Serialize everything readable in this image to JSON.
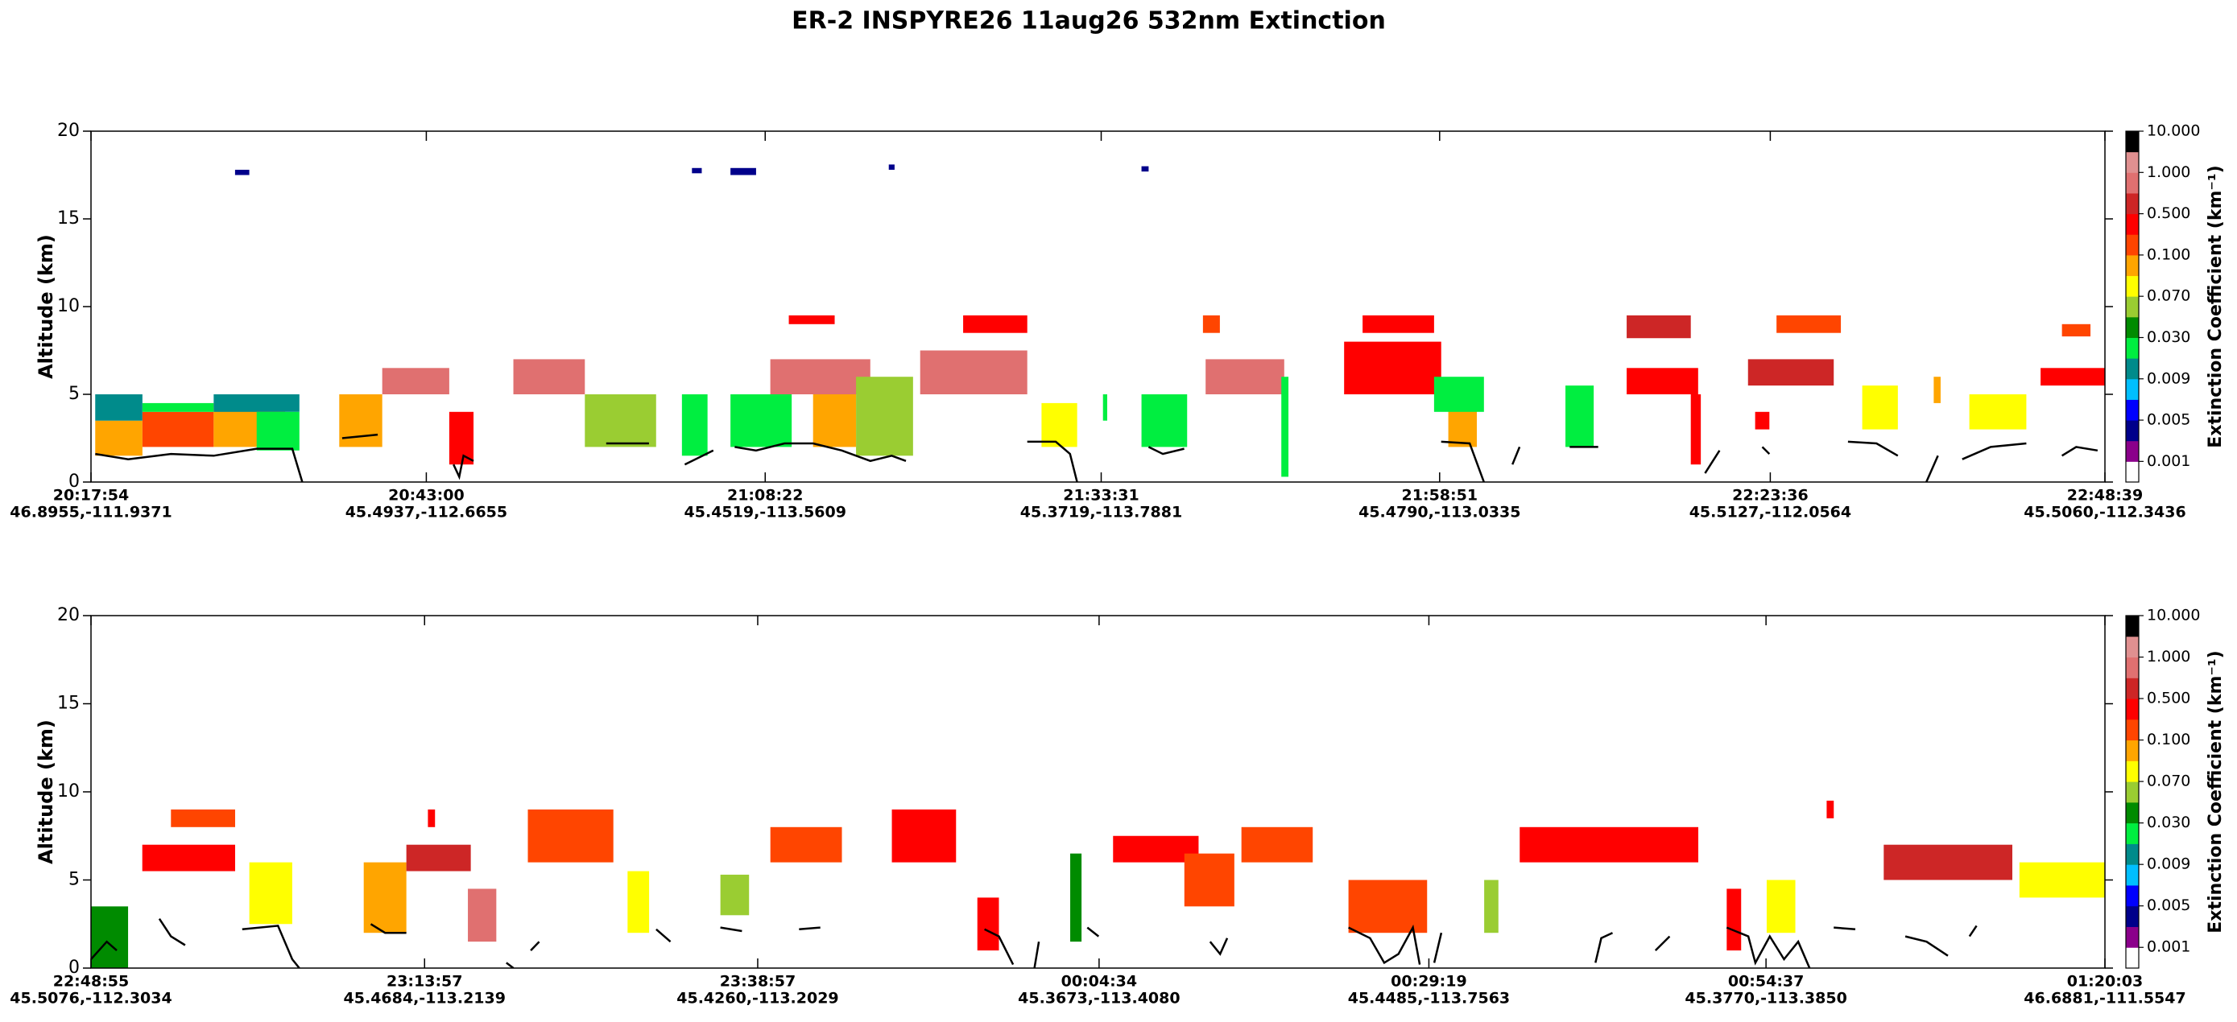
{
  "title": "ER-2  INSPYRE26  11aug26  532nm Extinction",
  "colorbar": {
    "label": "Extinction Coefficient (km⁻¹)",
    "ticks": [
      0.001,
      0.005,
      0.009,
      {
        "value": 0.03,
        "label": "0.030"
      },
      {
        "value": 0.07,
        "label": "0.070"
      },
      {
        "value": 0.1,
        "label": "0.100"
      },
      {
        "value": 0.5,
        "label": "0.500"
      },
      {
        "value": 1,
        "label": "1.000"
      },
      {
        "value": 10,
        "label": "10.000"
      }
    ],
    "colors": [
      "#ffffff",
      "#8b008b",
      "#00008b",
      "#0000ff",
      "#00bfff",
      "#008b8b",
      "#00ee40",
      "#008b00",
      "#9acd32",
      "#ffff00",
      "#ffa500",
      "#ff4500",
      "#ff0000",
      "#cd2626",
      "#e07070",
      "#e09090",
      "#000000"
    ]
  },
  "chart_data": [
    {
      "type": "curtain",
      "ylabel": "Altitude (km)",
      "ylim": [
        0,
        20
      ],
      "yticks": [
        0,
        5,
        10,
        15,
        20
      ],
      "xlim": [
        73074,
        82119
      ],
      "xticks": [
        {
          "value": 73074,
          "label": [
            "20:17:54",
            "46.8955,-111.9371"
          ]
        },
        {
          "value": 74580,
          "label": [
            "20:43:00",
            "45.4937,-112.6655"
          ]
        },
        {
          "value": 76102,
          "label": [
            "21:08:22",
            "45.4519,-113.5609"
          ]
        },
        {
          "value": 77611,
          "label": [
            "21:33:31",
            "45.3719,-113.7881"
          ]
        },
        {
          "value": 79131,
          "label": [
            "21:58:51",
            "45.4790,-113.0335"
          ]
        },
        {
          "value": 80616,
          "label": [
            "22:23:36",
            "45.5127,-112.0564"
          ]
        },
        {
          "value": 82119,
          "label": [
            "22:48:39",
            "45.5060,-112.3436"
          ]
        }
      ],
      "cells": [
        [
          73093,
          73305,
          1.5,
          3.5,
          0.09
        ],
        [
          73093,
          73305,
          3.5,
          5,
          0.01
        ],
        [
          73305,
          73625,
          2,
          4,
          0.2
        ],
        [
          73305,
          73625,
          4,
          4.5,
          0.02
        ],
        [
          73625,
          73946,
          2,
          4.5,
          0.09
        ],
        [
          73625,
          74010,
          4,
          5,
          0.01
        ],
        [
          73818,
          74010,
          1.8,
          4,
          0.02
        ],
        [
          73721,
          73785,
          17.5,
          17.8,
          0.004
        ],
        [
          74189,
          74382,
          2,
          5,
          0.09
        ],
        [
          74382,
          74683,
          5,
          6.5,
          0.9
        ],
        [
          74683,
          74792,
          1,
          4,
          0.4
        ],
        [
          74971,
          75292,
          5,
          7,
          0.9
        ],
        [
          75292,
          75612,
          2,
          5,
          0.06
        ],
        [
          75728,
          75843,
          1.5,
          5,
          0.02
        ],
        [
          75773,
          75817,
          17.6,
          17.9,
          0.004
        ],
        [
          75946,
          76061,
          17.5,
          17.9,
          0.004
        ],
        [
          75946,
          76221,
          2,
          5,
          0.02
        ],
        [
          76125,
          76574,
          5,
          7,
          0.9
        ],
        [
          76208,
          76414,
          9,
          9.5,
          0.4
        ],
        [
          76317,
          76510,
          2,
          5,
          0.09
        ],
        [
          76510,
          76766,
          1.5,
          6,
          0.06
        ],
        [
          76657,
          76683,
          17.8,
          18.1,
          0.004
        ],
        [
          76798,
          77279,
          5,
          7.5,
          0.9
        ],
        [
          76991,
          77279,
          8.5,
          9.5,
          0.4
        ],
        [
          77343,
          77503,
          2,
          4.5,
          0.08
        ],
        [
          77619,
          77638,
          3.5,
          5,
          0.02
        ],
        [
          77792,
          77824,
          17.7,
          18,
          0.004
        ],
        [
          77792,
          77997,
          2,
          5,
          0.02
        ],
        [
          78080,
          78433,
          5,
          7,
          0.9
        ],
        [
          78068,
          78144,
          8.5,
          9.5,
          0.2
        ],
        [
          78420,
          78452,
          0.3,
          6,
          0.02
        ],
        [
          78702,
          79138,
          5,
          8,
          0.4
        ],
        [
          78785,
          79106,
          8.5,
          9.5,
          0.4
        ],
        [
          79170,
          79298,
          2,
          5,
          0.09
        ],
        [
          79106,
          79330,
          4,
          6,
          0.02
        ],
        [
          79696,
          79823,
          2,
          5.5,
          0.02
        ],
        [
          79971,
          80292,
          5,
          6.5,
          0.4
        ],
        [
          79971,
          80259,
          8.2,
          9.5,
          0.7
        ],
        [
          80259,
          80304,
          1,
          5,
          0.4
        ],
        [
          80516,
          80901,
          5.5,
          7,
          0.7
        ],
        [
          80644,
          80933,
          8.5,
          9.5,
          0.2
        ],
        [
          80548,
          80612,
          3,
          4,
          0.4
        ],
        [
          81029,
          81189,
          3,
          5.5,
          0.08
        ],
        [
          81350,
          81381,
          4.5,
          6,
          0.09
        ],
        [
          81510,
          81766,
          3,
          5,
          0.08
        ],
        [
          81830,
          82119,
          5.5,
          6.5,
          0.4
        ],
        [
          81926,
          82054,
          8.3,
          9,
          0.2
        ]
      ],
      "surface": {
        "x": [
          73093,
          73241,
          73433,
          73625,
          73818,
          73978,
          74023,
          null,
          74202,
          74362,
          null,
          74702,
          74728,
          74747,
          74792,
          null,
          75388,
          75580,
          null,
          75741,
          75869,
          null,
          75965,
          76061,
          76189,
          76317,
          76446,
          76574,
          76670,
          76734,
          null,
          77279,
          77407,
          77471,
          77503,
          null,
          77824,
          77888,
          77984,
          null,
          79138,
          79266,
          79330,
          null,
          79458,
          79490,
          null,
          79715,
          79843,
          null,
          80323,
          80388,
          null,
          80580,
          80612,
          null,
          80965,
          81093,
          81189,
          null,
          81317,
          81369,
          null,
          81478,
          81606,
          81766,
          null,
          81926,
          81990,
          82086
        ],
        "y": [
          1.6,
          1.3,
          1.6,
          1.5,
          1.9,
          1.9,
          0,
          null,
          2.5,
          2.7,
          null,
          1,
          0.3,
          1.5,
          1.2,
          null,
          2.2,
          2.2,
          null,
          1,
          1.8,
          null,
          2,
          1.8,
          2.2,
          2.2,
          1.8,
          1.2,
          1.5,
          1.2,
          null,
          2.3,
          2.3,
          1.6,
          0,
          null,
          2,
          1.6,
          1.9,
          null,
          2.3,
          2.2,
          0,
          null,
          1,
          2,
          null,
          2,
          2,
          null,
          0.5,
          1.8,
          null,
          2,
          1.6,
          null,
          2.3,
          2.2,
          1.5,
          null,
          0,
          1.5,
          null,
          1.3,
          2,
          2.2,
          null,
          1.5,
          2,
          1.8
        ],
        "color": "#000000"
      }
    },
    {
      "type": "curtain",
      "ylabel": "Altitude (km)",
      "ylim": [
        0,
        20
      ],
      "yticks": [
        0,
        5,
        10,
        15,
        20
      ],
      "xlim": [
        82135,
        91203
      ],
      "xticks": [
        {
          "value": 82135,
          "label": [
            "22:48:55",
            "45.5076,-112.3034"
          ]
        },
        {
          "value": 83637,
          "label": [
            "23:13:57",
            "45.4684,-113.2139"
          ]
        },
        {
          "value": 85137,
          "label": [
            "23:38:57",
            "45.4260,-113.2029"
          ]
        },
        {
          "value": 86674,
          "label": [
            "00:04:34",
            "45.3673,-113.4080"
          ]
        },
        {
          "value": 88159,
          "label": [
            "00:29:19",
            "45.4485,-113.7563"
          ]
        },
        {
          "value": 89677,
          "label": [
            "00:54:37",
            "45.3770,-113.3850"
          ]
        },
        {
          "value": 91203,
          "label": [
            "01:20:03",
            "46.6881,-111.5547"
          ]
        }
      ],
      "cells": [
        [
          82135,
          82302,
          0,
          3.5,
          0.04
        ],
        [
          82366,
          82784,
          5.5,
          7,
          0.4
        ],
        [
          82495,
          82784,
          8,
          9,
          0.2
        ],
        [
          82848,
          83041,
          2.5,
          6,
          0.08
        ],
        [
          83363,
          83555,
          2,
          6,
          0.09
        ],
        [
          83555,
          83845,
          5.5,
          7,
          0.7
        ],
        [
          83652,
          83684,
          8,
          9,
          0.4
        ],
        [
          83832,
          83960,
          1.5,
          4.5,
          0.9
        ],
        [
          84102,
          84487,
          6,
          9,
          0.2
        ],
        [
          84551,
          84648,
          2,
          5.5,
          0.08
        ],
        [
          84969,
          85098,
          3,
          5.3,
          0.06
        ],
        [
          85194,
          85516,
          6,
          8,
          0.2
        ],
        [
          85741,
          86030,
          6,
          9,
          0.4
        ],
        [
          86126,
          86223,
          1,
          4,
          0.4
        ],
        [
          86544,
          86595,
          1.5,
          6.5,
          0.04
        ],
        [
          86737,
          87122,
          6,
          7.5,
          0.4
        ],
        [
          87058,
          87283,
          3.5,
          6.5,
          0.2
        ],
        [
          87315,
          87636,
          6,
          8,
          0.2
        ],
        [
          87797,
          88151,
          2,
          5,
          0.2
        ],
        [
          88408,
          88472,
          2,
          5,
          0.06
        ],
        [
          88568,
          89372,
          6,
          8,
          0.4
        ],
        [
          89500,
          89565,
          1,
          4.5,
          0.4
        ],
        [
          89680,
          89809,
          2,
          5,
          0.08
        ],
        [
          89950,
          89982,
          8.5,
          9.5,
          0.4
        ],
        [
          90207,
          90786,
          5,
          7,
          0.7
        ],
        [
          90818,
          91203,
          4,
          6,
          0.08
        ]
      ],
      "surface": {
        "x": [
          82135,
          82206,
          82251,
          null,
          82443,
          82495,
          82559,
          null,
          82816,
          82977,
          83041,
          83073,
          null,
          83395,
          83459,
          83555,
          null,
          84005,
          84037,
          null,
          84115,
          84153,
          null,
          84680,
          84744,
          null,
          84969,
          85066,
          null,
          85323,
          85419,
          null,
          86158,
          86223,
          86287,
          null,
          86383,
          86403,
          null,
          86621,
          86672,
          null,
          87174,
          87219,
          87251,
          null,
          87797,
          87894,
          87958,
          88022,
          88087,
          88118,
          null,
          88183,
          88215,
          null,
          88909,
          88935,
          88986,
          null,
          89179,
          89243,
          null,
          89500,
          89597,
          89629,
          89694,
          89758,
          89822,
          89873,
          null,
          89982,
          90079,
          null,
          90304,
          90400,
          90496,
          null,
          90593,
          90625
        ],
        "y": [
          0.5,
          1.5,
          1,
          null,
          2.8,
          1.8,
          1.3,
          null,
          2.2,
          2.4,
          0.5,
          0,
          null,
          2.5,
          2,
          2,
          null,
          0.3,
          0,
          null,
          1,
          1.5,
          null,
          2.2,
          1.5,
          null,
          2.3,
          2.1,
          null,
          2.2,
          2.3,
          null,
          2.2,
          1.8,
          0.2,
          null,
          0,
          1.5,
          null,
          2.3,
          1.8,
          null,
          1.5,
          0.8,
          1.7,
          null,
          2.3,
          1.7,
          0.3,
          0.8,
          2.3,
          0.2,
          null,
          0.3,
          2,
          null,
          0.3,
          1.7,
          2,
          null,
          1,
          1.8,
          null,
          2.3,
          1.8,
          0.3,
          1.8,
          0.5,
          1.5,
          0,
          null,
          2.3,
          2.2,
          null,
          1.8,
          1.5,
          0.7,
          null,
          1.8,
          2.4
        ],
        "color": "#000000"
      }
    }
  ]
}
